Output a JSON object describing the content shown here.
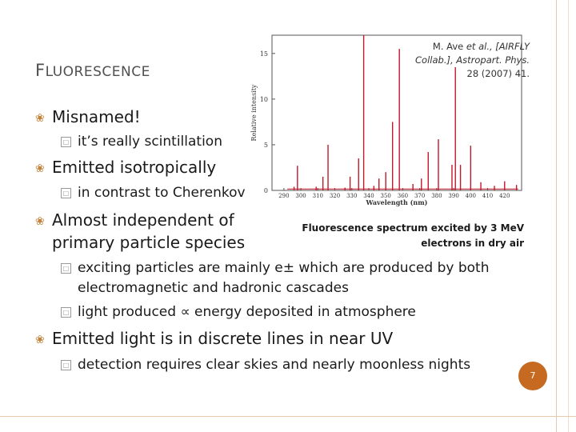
{
  "slide": {
    "title": "Fluorescence",
    "page_number": "7",
    "bullets": [
      {
        "text": "Misnamed!",
        "subs": [
          "it’s really scintillation"
        ]
      },
      {
        "text": "Emitted isotropically",
        "subs": [
          "in contrast to Cherenkov"
        ]
      },
      {
        "text_line1": "Almost independent of",
        "text_line2": "primary particle species",
        "subs": [
          "exciting particles are mainly e± which are produced by both",
          "electromagnetic and hadronic cascades",
          "light produced ∝ energy deposited in atmosphere"
        ]
      },
      {
        "text": "Emitted light is in discrete lines in near UV",
        "subs": [
          "detection requires clear skies and nearly moonless nights"
        ]
      }
    ]
  },
  "figure": {
    "citation_line1": "M. Ave ",
    "citation_italic1": "et al., [AIRFLY",
    "citation_line2": "Collab.], Astropart. Phys.",
    "citation_line3": "28 (2007) 41.",
    "caption_line1": "Fluorescence spectrum excited by 3 MeV",
    "caption_line2": "electrons in dry air"
  },
  "chart_data": {
    "type": "line",
    "xlabel": "Wavelength (nm)",
    "ylabel": "Relative intensity",
    "xlim": [
      283,
      430
    ],
    "ylim": [
      0,
      17
    ],
    "x_ticks": [
      "290",
      "300",
      "310",
      "320",
      "330",
      "340",
      "350",
      "360",
      "370",
      "380",
      "390",
      "400",
      "410",
      "420"
    ],
    "y_ticks": [
      "0",
      "5",
      "10",
      "15"
    ],
    "series_color": "#c0192b",
    "x": [
      296,
      298,
      309,
      313,
      316,
      326,
      329,
      334,
      337,
      343,
      346,
      350,
      354,
      358,
      366,
      371,
      375,
      381,
      389,
      391,
      394,
      400,
      406,
      414,
      420,
      427
    ],
    "values": [
      0.4,
      2.7,
      0.4,
      1.5,
      5.0,
      0.3,
      1.5,
      3.5,
      18.0,
      0.5,
      1.3,
      2.0,
      7.5,
      15.5,
      0.7,
      1.3,
      4.2,
      5.6,
      2.8,
      13.5,
      2.8,
      4.9,
      0.9,
      0.5,
      1.0,
      0.6
    ]
  }
}
